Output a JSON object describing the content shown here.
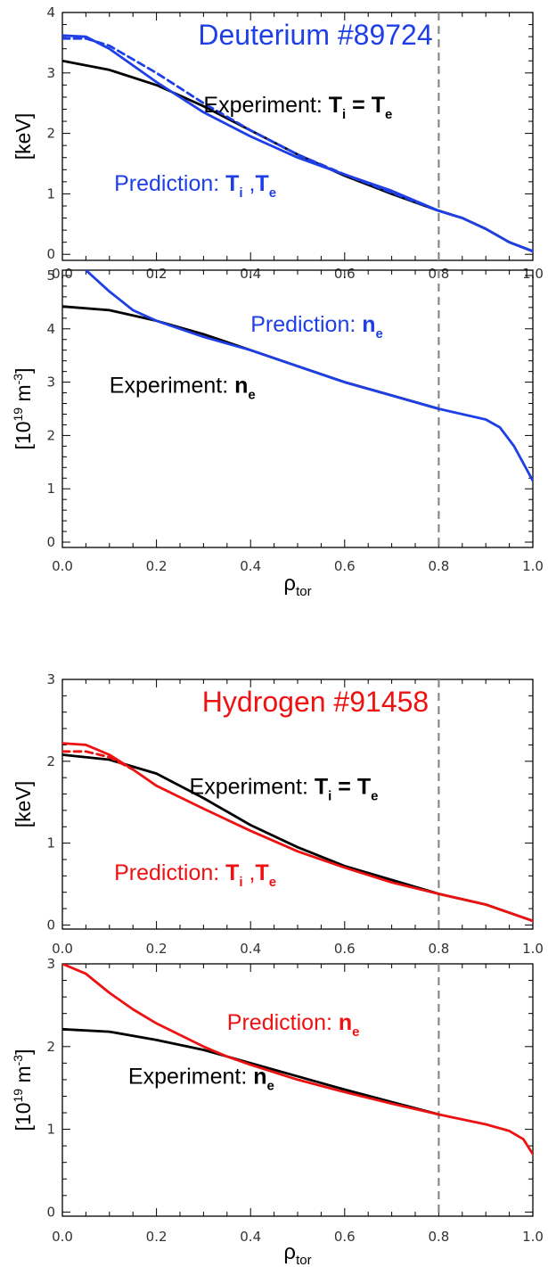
{
  "colors": {
    "experiment": "#000000",
    "deuterium": "#1f3fe6",
    "hydrogen": "#ee1111",
    "separatrix_line": "#888888"
  },
  "chart_data": [
    {
      "type": "line",
      "title": "Deuterium #89724",
      "ylabel": "[keV]",
      "ylabel_sup": "",
      "xlabel": "",
      "xlabel_sub": "",
      "xlim": [
        0,
        1
      ],
      "ylim": [
        -0.1,
        4.0
      ],
      "xticks": [
        "0.0",
        "0.2",
        "0.4",
        "0.6",
        "0.8",
        "1.0"
      ],
      "yticks": [
        "0",
        "1",
        "2",
        "3",
        "4"
      ],
      "vline_x": 0.8,
      "annotations": [
        {
          "prefix": "Experiment: ",
          "b1": "T",
          "s1": "i",
          "mid": " = ",
          "b2": "T",
          "s2": "e",
          "color": "#000000",
          "x": 0.3,
          "y": 2.35
        },
        {
          "prefix": "Prediction: ",
          "b1": "T",
          "s1": "i",
          "mid": " ,",
          "b2": "T",
          "s2": "e",
          "color": "#1f3fe6",
          "x": 0.11,
          "y": 1.05
        }
      ],
      "series": [
        {
          "color": "#000000",
          "dash": false,
          "x": [
            0,
            0.1,
            0.2,
            0.3,
            0.4,
            0.5,
            0.6,
            0.7,
            0.8,
            0.85,
            0.9,
            0.95,
            1.0
          ],
          "y": [
            3.2,
            3.05,
            2.8,
            2.45,
            2.05,
            1.65,
            1.3,
            1.0,
            0.72,
            0.6,
            0.42,
            0.2,
            0.05
          ]
        },
        {
          "color": "#1f3fe6",
          "dash": false,
          "x": [
            0,
            0.05,
            0.1,
            0.2,
            0.3,
            0.4,
            0.5,
            0.6,
            0.7,
            0.8,
            0.85,
            0.9,
            0.95,
            1.0
          ],
          "y": [
            3.62,
            3.6,
            3.4,
            2.85,
            2.35,
            1.95,
            1.6,
            1.32,
            1.05,
            0.72,
            0.6,
            0.42,
            0.2,
            0.05
          ]
        },
        {
          "color": "#1f3fe6",
          "dash": true,
          "x": [
            0,
            0.05,
            0.1,
            0.2,
            0.3,
            0.4,
            0.5,
            0.6,
            0.7,
            0.8
          ],
          "y": [
            3.57,
            3.57,
            3.45,
            3.0,
            2.5,
            2.05,
            1.65,
            1.32,
            1.02,
            0.72
          ]
        }
      ]
    },
    {
      "type": "line",
      "title": "",
      "ylabel": "[10",
      "ylabel_sup": "19",
      "ylabel_rest": " m",
      "ylabel_sup2": "-3",
      "ylabel_end": "]",
      "xlabel": "ρ",
      "xlabel_sub": "tor",
      "xlim": [
        0,
        1
      ],
      "ylim": [
        -0.1,
        5.1
      ],
      "xticks": [
        "0.0",
        "0.2",
        "0.4",
        "0.6",
        "0.8",
        "1.0"
      ],
      "yticks": [
        "0",
        "1",
        "2",
        "3",
        "4",
        "5"
      ],
      "vline_x": 0.8,
      "annotations": [
        {
          "prefix": "Prediction: ",
          "b1": "n",
          "s1": "e",
          "mid": "",
          "b2": "",
          "s2": "",
          "color": "#1f3fe6",
          "x": 0.4,
          "y": 3.95
        },
        {
          "prefix": "Experiment: ",
          "b1": "n",
          "s1": "e",
          "mid": "",
          "b2": "",
          "s2": "",
          "color": "#000000",
          "x": 0.1,
          "y": 2.8
        }
      ],
      "series": [
        {
          "color": "#000000",
          "dash": false,
          "x": [
            0,
            0.1,
            0.2,
            0.3,
            0.4,
            0.5,
            0.6,
            0.7,
            0.8
          ],
          "y": [
            4.42,
            4.35,
            4.15,
            3.9,
            3.6,
            3.3,
            3.0,
            2.75,
            2.5
          ]
        },
        {
          "color": "#1f3fe6",
          "dash": false,
          "x": [
            0.05,
            0.1,
            0.15,
            0.2,
            0.3,
            0.4,
            0.5,
            0.6,
            0.7,
            0.8,
            0.85,
            0.9,
            0.93,
            0.96,
            1.0
          ],
          "y": [
            5.1,
            4.7,
            4.35,
            4.15,
            3.85,
            3.6,
            3.3,
            3.0,
            2.75,
            2.5,
            2.4,
            2.3,
            2.15,
            1.8,
            1.15
          ]
        }
      ]
    },
    {
      "type": "line",
      "title": "Hydrogen #91458",
      "ylabel": "[keV]",
      "ylabel_sup": "",
      "xlabel": "",
      "xlabel_sub": "",
      "xlim": [
        0,
        1
      ],
      "ylim": [
        -0.05,
        3.0
      ],
      "xticks": [
        "0.0",
        "0.2",
        "0.4",
        "0.6",
        "0.8",
        "1.0"
      ],
      "yticks": [
        "0",
        "1",
        "2",
        "3"
      ],
      "vline_x": 0.8,
      "annotations": [
        {
          "prefix": "Experiment: ",
          "b1": "T",
          "s1": "i",
          "mid": " = ",
          "b2": "T",
          "s2": "e",
          "color": "#000000",
          "x": 0.27,
          "y": 1.6
        },
        {
          "prefix": "Prediction: ",
          "b1": "T",
          "s1": "i",
          "mid": " ,",
          "b2": "T",
          "s2": "e",
          "color": "#ee1111",
          "x": 0.11,
          "y": 0.55
        }
      ],
      "series": [
        {
          "color": "#000000",
          "dash": false,
          "x": [
            0,
            0.1,
            0.2,
            0.3,
            0.4,
            0.5,
            0.6,
            0.7,
            0.8,
            0.9,
            1.0
          ],
          "y": [
            2.08,
            2.02,
            1.85,
            1.55,
            1.22,
            0.95,
            0.72,
            0.55,
            0.38,
            0.25,
            0.05
          ]
        },
        {
          "color": "#ee1111",
          "dash": false,
          "x": [
            0,
            0.05,
            0.1,
            0.15,
            0.2,
            0.3,
            0.4,
            0.5,
            0.6,
            0.7,
            0.8,
            0.9,
            1.0
          ],
          "y": [
            2.22,
            2.2,
            2.08,
            1.9,
            1.7,
            1.42,
            1.15,
            0.9,
            0.7,
            0.52,
            0.38,
            0.25,
            0.05
          ]
        },
        {
          "color": "#ee1111",
          "dash": true,
          "x": [
            0,
            0.05,
            0.1,
            0.15
          ],
          "y": [
            2.12,
            2.12,
            2.05,
            1.9
          ]
        }
      ]
    },
    {
      "type": "line",
      "title": "",
      "ylabel": "[10",
      "ylabel_sup": "19",
      "ylabel_rest": " m",
      "ylabel_sup2": "-3",
      "ylabel_end": "]",
      "xlabel": "ρ",
      "xlabel_sub": "tor",
      "xlim": [
        0,
        1
      ],
      "ylim": [
        -0.05,
        3.0
      ],
      "xticks": [
        "0.0",
        "0.2",
        "0.4",
        "0.6",
        "0.8",
        "1.0"
      ],
      "yticks": [
        "0",
        "1",
        "2",
        "3"
      ],
      "vline_x": 0.8,
      "annotations": [
        {
          "prefix": "Prediction: ",
          "b1": "n",
          "s1": "e",
          "mid": "",
          "b2": "",
          "s2": "",
          "color": "#ee1111",
          "x": 0.35,
          "y": 2.2
        },
        {
          "prefix": "Experiment: ",
          "b1": "n",
          "s1": "e",
          "mid": "",
          "b2": "",
          "s2": "",
          "color": "#000000",
          "x": 0.14,
          "y": 1.55
        }
      ],
      "series": [
        {
          "color": "#000000",
          "dash": false,
          "x": [
            0,
            0.1,
            0.2,
            0.3,
            0.4,
            0.5,
            0.6,
            0.7,
            0.8
          ],
          "y": [
            2.21,
            2.18,
            2.08,
            1.96,
            1.8,
            1.64,
            1.48,
            1.33,
            1.18
          ]
        },
        {
          "color": "#ee1111",
          "dash": false,
          "x": [
            0,
            0.05,
            0.1,
            0.15,
            0.2,
            0.3,
            0.35,
            0.4,
            0.5,
            0.6,
            0.7,
            0.8,
            0.9,
            0.95,
            0.98,
            1.0
          ],
          "y": [
            3.0,
            2.88,
            2.65,
            2.45,
            2.28,
            2.0,
            1.88,
            1.78,
            1.6,
            1.45,
            1.31,
            1.18,
            1.06,
            0.98,
            0.88,
            0.7
          ]
        }
      ]
    }
  ]
}
